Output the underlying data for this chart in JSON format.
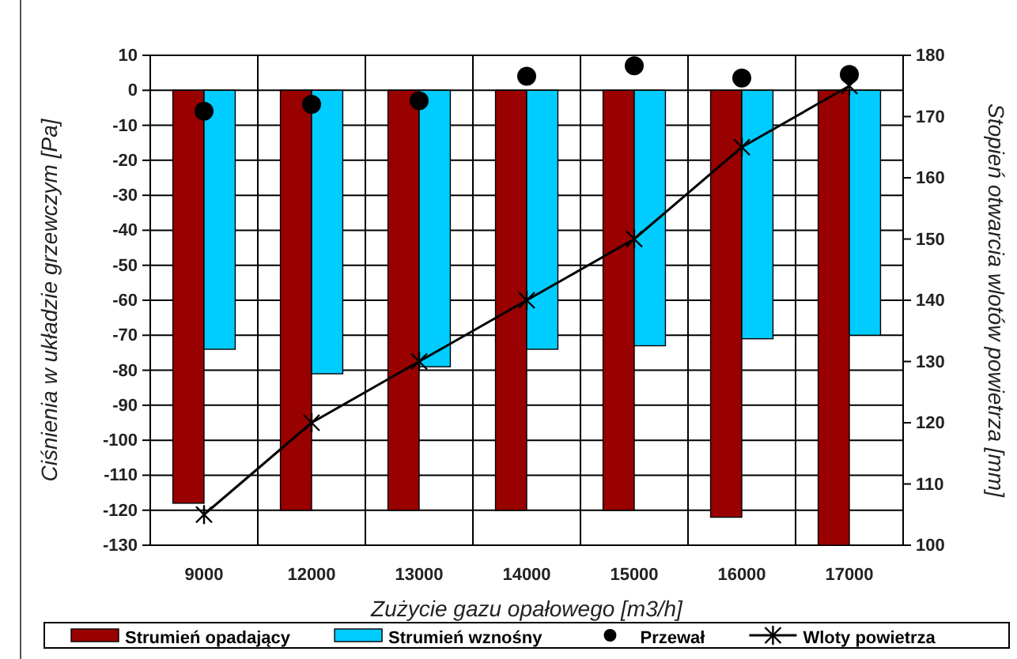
{
  "chart_data": {
    "type": "bar",
    "xlabel": "Zużycie gazu opałowego [m3/h]",
    "ylabel": "Ciśnienia w układzie grzewczym [Pa]",
    "y2label": "Stopień otwarcia wlotów powietrza [mm]",
    "categories": [
      "9000",
      "12000",
      "13000",
      "14000",
      "15000",
      "16000",
      "17000"
    ],
    "series": [
      {
        "name": "Strumień opadający",
        "color": "#990000",
        "values": [
          -118,
          -120,
          -120,
          -120,
          -120,
          -122,
          -130
        ]
      },
      {
        "name": "Strumień wznośny",
        "color": "#00ccff",
        "values": [
          -74,
          -81,
          -79,
          -74,
          -73,
          -71,
          -70
        ]
      },
      {
        "name": "Przewał",
        "type": "scatter",
        "color": "#000000",
        "marker": "circle",
        "values": [
          -6,
          -4,
          -3,
          4,
          7,
          3.5,
          4.5
        ]
      },
      {
        "name": "Wloty powietrza",
        "type": "line",
        "axis": "y2",
        "color": "#000000",
        "marker": "cross",
        "line_style": "solid",
        "values": [
          105,
          120,
          130,
          140,
          150,
          165,
          175
        ]
      }
    ],
    "ylim": [
      -130,
      10
    ],
    "yticks": [
      -130,
      -120,
      -110,
      -100,
      -90,
      -80,
      -70,
      -60,
      -50,
      -40,
      -30,
      -20,
      -10,
      0,
      10
    ],
    "y2lim": [
      100,
      180
    ],
    "y2ticks": [
      100,
      110,
      120,
      130,
      140,
      150,
      160,
      170,
      180
    ],
    "grid": true,
    "legend": "bottom"
  }
}
